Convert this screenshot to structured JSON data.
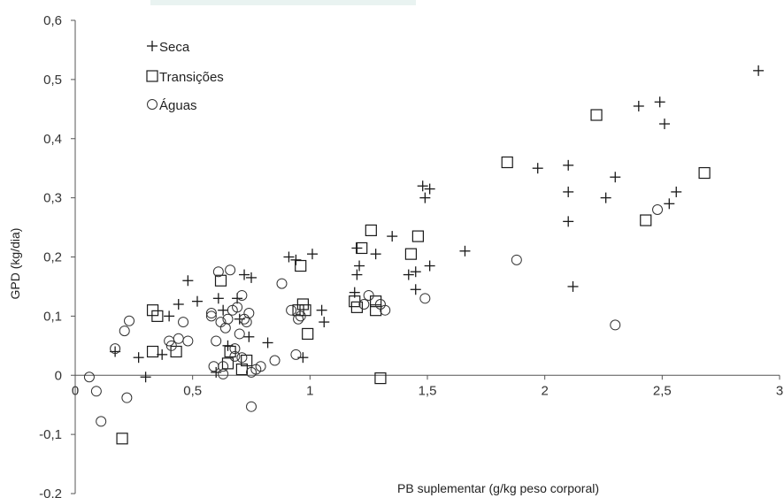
{
  "chart_data": {
    "type": "scatter",
    "xlabel": "PB suplementar  (g/kg peso corporal)",
    "ylabel": "GPD  (kg/dia)",
    "xlim": [
      0,
      3
    ],
    "ylim": [
      -0.2,
      0.6
    ],
    "x_ticks": [
      "0",
      "0,5",
      "1",
      "1,5",
      "2",
      "2,5",
      "3"
    ],
    "y_ticks": [
      "0,6",
      "0,5",
      "0,4",
      "0,3",
      "0,2",
      "0,1",
      "0",
      "-0,1",
      "-0,2"
    ],
    "legend_position": "top-left",
    "grid": false,
    "series": [
      {
        "name": "Seca",
        "marker": "plus",
        "points": [
          [
            0.17,
            0.04
          ],
          [
            0.27,
            0.03
          ],
          [
            0.3,
            -0.003
          ],
          [
            0.37,
            0.035
          ],
          [
            0.4,
            0.1
          ],
          [
            0.44,
            0.12
          ],
          [
            0.48,
            0.16
          ],
          [
            0.52,
            0.125
          ],
          [
            0.6,
            0.005
          ],
          [
            0.61,
            0.13
          ],
          [
            0.63,
            0.11
          ],
          [
            0.65,
            0.05
          ],
          [
            0.69,
            0.13
          ],
          [
            0.7,
            0.095
          ],
          [
            0.72,
            0.17
          ],
          [
            0.74,
            0.065
          ],
          [
            0.75,
            0.165
          ],
          [
            0.82,
            0.055
          ],
          [
            0.91,
            0.2
          ],
          [
            0.94,
            0.195
          ],
          [
            0.97,
            0.03
          ],
          [
            1.01,
            0.205
          ],
          [
            1.05,
            0.11
          ],
          [
            1.06,
            0.09
          ],
          [
            1.19,
            0.14
          ],
          [
            1.2,
            0.17
          ],
          [
            1.2,
            0.215
          ],
          [
            1.21,
            0.185
          ],
          [
            1.28,
            0.205
          ],
          [
            1.35,
            0.235
          ],
          [
            1.42,
            0.17
          ],
          [
            1.45,
            0.175
          ],
          [
            1.45,
            0.145
          ],
          [
            1.48,
            0.32
          ],
          [
            1.49,
            0.3
          ],
          [
            1.51,
            0.315
          ],
          [
            1.51,
            0.185
          ],
          [
            1.66,
            0.21
          ],
          [
            1.97,
            0.35
          ],
          [
            2.1,
            0.355
          ],
          [
            2.1,
            0.31
          ],
          [
            2.1,
            0.26
          ],
          [
            2.12,
            0.15
          ],
          [
            2.26,
            0.3
          ],
          [
            2.3,
            0.335
          ],
          [
            2.4,
            0.455
          ],
          [
            2.49,
            0.462
          ],
          [
            2.51,
            0.425
          ],
          [
            2.53,
            0.29
          ],
          [
            2.56,
            0.31
          ],
          [
            2.91,
            0.515
          ]
        ]
      },
      {
        "name": "Transições",
        "marker": "square",
        "points": [
          [
            0.2,
            -0.107
          ],
          [
            0.33,
            0.04
          ],
          [
            0.33,
            0.11
          ],
          [
            0.35,
            0.1
          ],
          [
            0.43,
            0.04
          ],
          [
            0.62,
            0.16
          ],
          [
            0.65,
            0.02
          ],
          [
            0.66,
            0.04
          ],
          [
            0.71,
            0.01
          ],
          [
            0.73,
            0.025
          ],
          [
            0.95,
            0.11
          ],
          [
            0.96,
            0.185
          ],
          [
            0.97,
            0.12
          ],
          [
            0.98,
            0.11
          ],
          [
            0.99,
            0.07
          ],
          [
            1.19,
            0.125
          ],
          [
            1.2,
            0.115
          ],
          [
            1.22,
            0.215
          ],
          [
            1.26,
            0.245
          ],
          [
            1.28,
            0.125
          ],
          [
            1.28,
            0.11
          ],
          [
            1.3,
            -0.005
          ],
          [
            1.43,
            0.205
          ],
          [
            1.46,
            0.235
          ],
          [
            1.84,
            0.36
          ],
          [
            2.22,
            0.44
          ],
          [
            2.43,
            0.262
          ],
          [
            2.68,
            0.342
          ]
        ]
      },
      {
        "name": "Águas",
        "marker": "circle",
        "points": [
          [
            0.06,
            -0.003
          ],
          [
            0.09,
            -0.027
          ],
          [
            0.11,
            -0.078
          ],
          [
            0.17,
            0.045
          ],
          [
            0.21,
            0.075
          ],
          [
            0.22,
            -0.038
          ],
          [
            0.23,
            0.092
          ],
          [
            0.4,
            0.058
          ],
          [
            0.41,
            0.05
          ],
          [
            0.44,
            0.062
          ],
          [
            0.46,
            0.09
          ],
          [
            0.48,
            0.058
          ],
          [
            0.58,
            0.105
          ],
          [
            0.58,
            0.1
          ],
          [
            0.59,
            0.015
          ],
          [
            0.6,
            0.058
          ],
          [
            0.61,
            0.175
          ],
          [
            0.62,
            0.09
          ],
          [
            0.63,
            0.015
          ],
          [
            0.63,
            0.002
          ],
          [
            0.64,
            0.08
          ],
          [
            0.65,
            0.095
          ],
          [
            0.66,
            0.178
          ],
          [
            0.67,
            0.11
          ],
          [
            0.68,
            0.045
          ],
          [
            0.68,
            0.032
          ],
          [
            0.69,
            0.115
          ],
          [
            0.7,
            0.07
          ],
          [
            0.71,
            0.03
          ],
          [
            0.71,
            0.135
          ],
          [
            0.72,
            0.095
          ],
          [
            0.73,
            0.09
          ],
          [
            0.74,
            0.105
          ],
          [
            0.75,
            0.005
          ],
          [
            0.75,
            -0.053
          ],
          [
            0.77,
            0.01
          ],
          [
            0.79,
            0.015
          ],
          [
            0.85,
            0.025
          ],
          [
            0.88,
            0.155
          ],
          [
            0.92,
            0.11
          ],
          [
            0.94,
            0.035
          ],
          [
            0.95,
            0.095
          ],
          [
            0.96,
            0.1
          ],
          [
            1.23,
            0.12
          ],
          [
            1.25,
            0.135
          ],
          [
            1.3,
            0.12
          ],
          [
            1.32,
            0.11
          ],
          [
            1.49,
            0.13
          ],
          [
            1.88,
            0.195
          ],
          [
            2.3,
            0.085
          ],
          [
            2.48,
            0.28
          ]
        ]
      }
    ]
  }
}
